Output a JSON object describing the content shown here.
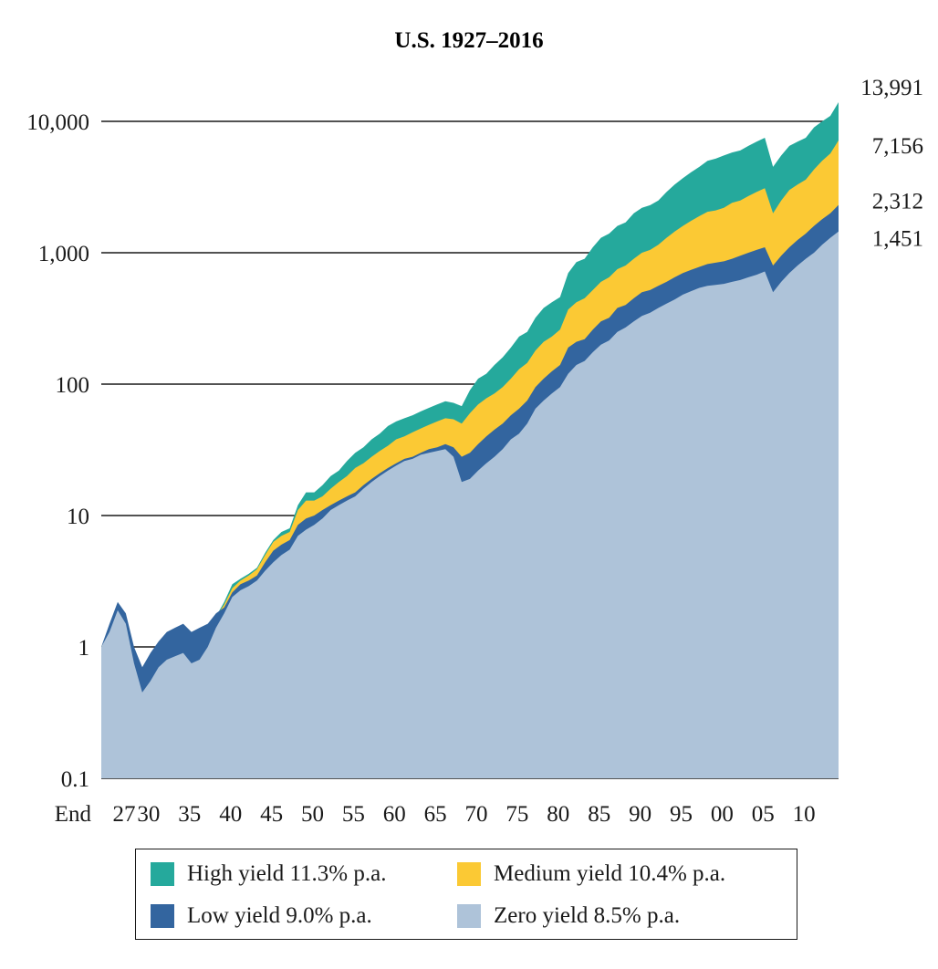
{
  "chart_data": {
    "type": "area",
    "title": "U.S. 1927–2016",
    "scale": "log",
    "ylim": [
      0.1,
      10000
    ],
    "y_ticks": [
      "0.1",
      "1",
      "10",
      "100",
      "1,000",
      "10,000"
    ],
    "x_tick_labels": [
      "End",
      "27",
      "30",
      "35",
      "40",
      "45",
      "50",
      "55",
      "60",
      "65",
      "70",
      "75",
      "80",
      "85",
      "90",
      "95",
      "00",
      "05",
      "10"
    ],
    "x_tick_years": [
      1926,
      1927,
      1930,
      1935,
      1940,
      1945,
      1950,
      1955,
      1960,
      1965,
      1970,
      1975,
      1980,
      1985,
      1990,
      1995,
      2000,
      2005,
      2010
    ],
    "xlim": [
      1926,
      2016
    ],
    "x": [
      1926,
      1927,
      1928,
      1929,
      1930,
      1931,
      1932,
      1933,
      1934,
      1935,
      1936,
      1937,
      1938,
      1939,
      1940,
      1941,
      1942,
      1943,
      1944,
      1945,
      1946,
      1947,
      1948,
      1949,
      1950,
      1951,
      1952,
      1953,
      1954,
      1955,
      1956,
      1957,
      1958,
      1959,
      1960,
      1961,
      1962,
      1963,
      1964,
      1965,
      1966,
      1967,
      1968,
      1969,
      1970,
      1971,
      1972,
      1973,
      1974,
      1975,
      1976,
      1977,
      1978,
      1979,
      1980,
      1981,
      1982,
      1983,
      1984,
      1985,
      1986,
      1987,
      1988,
      1989,
      1990,
      1991,
      1992,
      1993,
      1994,
      1995,
      1996,
      1997,
      1998,
      1999,
      2000,
      2001,
      2002,
      2003,
      2004,
      2005,
      2006,
      2007,
      2008,
      2009,
      2010,
      2011,
      2012,
      2013,
      2014,
      2015,
      2016
    ],
    "series": [
      {
        "name": "High yield 11.3% p.a.",
        "color": "#25a99c",
        "values": [
          1,
          1.4,
          2.1,
          1.7,
          0.9,
          0.6,
          0.8,
          1.0,
          1.2,
          1.3,
          1.4,
          1.2,
          1.3,
          1.4,
          1.7,
          2.2,
          3.0,
          3.3,
          3.6,
          4.0,
          5.2,
          6.5,
          7.5,
          8.0,
          12,
          15,
          15,
          17,
          20,
          22,
          26,
          30,
          33,
          38,
          42,
          48,
          52,
          55,
          58,
          62,
          66,
          70,
          74,
          72,
          68,
          90,
          110,
          120,
          140,
          160,
          190,
          230,
          250,
          320,
          380,
          420,
          460,
          700,
          850,
          900,
          1100,
          1300,
          1400,
          1600,
          1700,
          2000,
          2200,
          2300,
          2500,
          2900,
          3300,
          3700,
          4100,
          4500,
          5000,
          5200,
          5500,
          5800,
          6000,
          6500,
          7000,
          7500,
          4500,
          5500,
          6500,
          7000,
          7500,
          9000,
          10000,
          11000,
          13991
        ]
      },
      {
        "name": "Medium yield 10.4% p.a.",
        "color": "#fbc934",
        "values": [
          1,
          1.4,
          2.0,
          1.6,
          0.9,
          0.6,
          0.8,
          0.9,
          1.1,
          1.2,
          1.3,
          1.2,
          1.2,
          1.4,
          1.7,
          2.1,
          2.8,
          3.2,
          3.5,
          3.9,
          5.0,
          6.3,
          7.0,
          7.5,
          11,
          13,
          13,
          14,
          16,
          18,
          20,
          23,
          25,
          28,
          31,
          34,
          38,
          40,
          43,
          46,
          49,
          52,
          55,
          54,
          50,
          60,
          70,
          78,
          85,
          95,
          110,
          130,
          145,
          180,
          210,
          230,
          260,
          370,
          420,
          450,
          520,
          600,
          650,
          750,
          800,
          900,
          1000,
          1050,
          1150,
          1300,
          1450,
          1600,
          1750,
          1900,
          2050,
          2100,
          2200,
          2400,
          2500,
          2700,
          2900,
          3100,
          2000,
          2500,
          3000,
          3300,
          3600,
          4300,
          5000,
          5700,
          7156
        ]
      },
      {
        "name": "Low yield 9.0% p.a.",
        "color": "#33659f",
        "values": [
          1,
          1.5,
          2.2,
          1.8,
          1.0,
          0.7,
          0.9,
          1.1,
          1.3,
          1.4,
          1.5,
          1.3,
          1.4,
          1.5,
          1.8,
          2.0,
          2.6,
          3.0,
          3.2,
          3.5,
          4.4,
          5.4,
          6.0,
          6.5,
          8.5,
          9.5,
          10,
          11,
          12,
          13,
          14,
          15,
          17,
          19,
          21,
          23,
          25,
          27,
          28,
          30,
          32,
          33,
          35,
          33,
          28,
          30,
          35,
          40,
          45,
          50,
          58,
          65,
          75,
          95,
          110,
          125,
          140,
          190,
          210,
          220,
          260,
          300,
          320,
          380,
          400,
          450,
          500,
          520,
          560,
          600,
          650,
          700,
          740,
          780,
          820,
          840,
          860,
          900,
          950,
          1000,
          1050,
          1100,
          800,
          950,
          1100,
          1250,
          1400,
          1600,
          1800,
          2000,
          2312
        ]
      },
      {
        "name": "Zero yield 8.5% p.a.",
        "color": "#aec3d9",
        "values": [
          1,
          1.3,
          1.9,
          1.5,
          0.75,
          0.45,
          0.55,
          0.7,
          0.8,
          0.85,
          0.9,
          0.75,
          0.8,
          1.0,
          1.4,
          1.8,
          2.4,
          2.7,
          2.9,
          3.2,
          3.8,
          4.4,
          5.0,
          5.5,
          7.0,
          7.8,
          8.5,
          9.5,
          11,
          12,
          13,
          14,
          16,
          18,
          20,
          22,
          24,
          26,
          27,
          29,
          30,
          31,
          32,
          28,
          18,
          19,
          22,
          25,
          28,
          32,
          38,
          42,
          50,
          65,
          75,
          85,
          95,
          120,
          140,
          150,
          175,
          200,
          215,
          250,
          270,
          300,
          330,
          350,
          380,
          410,
          440,
          480,
          510,
          540,
          560,
          570,
          580,
          600,
          620,
          650,
          680,
          720,
          500,
          600,
          700,
          800,
          900,
          1000,
          1150,
          1300,
          1451
        ]
      }
    ],
    "end_labels": [
      "13,991",
      "7,156",
      "2,312",
      "1,451"
    ],
    "grid": "horizontal",
    "legend_placement": "bottom"
  }
}
